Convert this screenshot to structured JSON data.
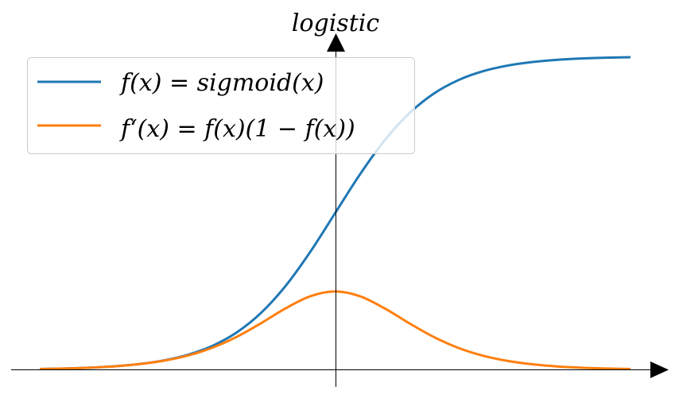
{
  "chart_data": {
    "type": "line",
    "title": "logistic",
    "xlim": [
      -6,
      6
    ],
    "ylim": [
      0,
      1
    ],
    "grid": false,
    "legend_position": "upper-left",
    "x": [
      -6,
      -5.5,
      -5,
      -4.5,
      -4,
      -3.5,
      -3,
      -2.5,
      -2,
      -1.5,
      -1,
      -0.5,
      0,
      0.5,
      1,
      1.5,
      2,
      2.5,
      3,
      3.5,
      4,
      4.5,
      5,
      5.5,
      6
    ],
    "series": [
      {
        "name": "f(x) = sigmoid(x)",
        "color": "#1f77b4",
        "values": [
          0.0025,
          0.0041,
          0.0067,
          0.011,
          0.018,
          0.0293,
          0.0474,
          0.0759,
          0.1192,
          0.1824,
          0.2689,
          0.3775,
          0.5,
          0.6225,
          0.7311,
          0.8176,
          0.8808,
          0.9241,
          0.9526,
          0.9707,
          0.982,
          0.989,
          0.9933,
          0.9959,
          0.9975
        ]
      },
      {
        "name": "f‘(x) = f(x)(1 − f(x))",
        "color": "#ff7f0e",
        "values": [
          0.0025,
          0.0041,
          0.0066,
          0.0109,
          0.0177,
          0.0285,
          0.0452,
          0.0701,
          0.105,
          0.1491,
          0.1966,
          0.235,
          0.25,
          0.235,
          0.1966,
          0.1491,
          0.105,
          0.0701,
          0.0452,
          0.0285,
          0.0177,
          0.0109,
          0.0066,
          0.0041,
          0.0025
        ]
      }
    ]
  }
}
